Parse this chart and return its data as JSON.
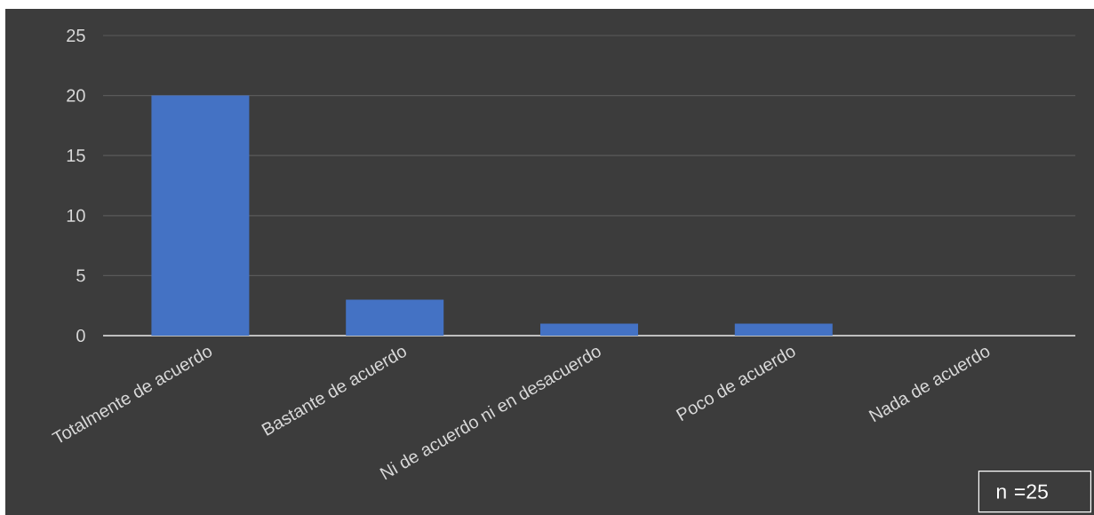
{
  "chart_data": {
    "type": "bar",
    "categories": [
      "Totalmente de acuerdo",
      "Bastante de acuerdo",
      "Ni de acuerdo ni en desacuerdo",
      "Poco de acuerdo",
      "Nada de acuerdo"
    ],
    "values": [
      20,
      3,
      1,
      1,
      0
    ],
    "color": "#4472c4",
    "ylim": [
      0,
      25
    ],
    "yticks": [
      0,
      5,
      10,
      15,
      20,
      25
    ],
    "grid": "y",
    "annotations": [
      "n =25"
    ]
  }
}
